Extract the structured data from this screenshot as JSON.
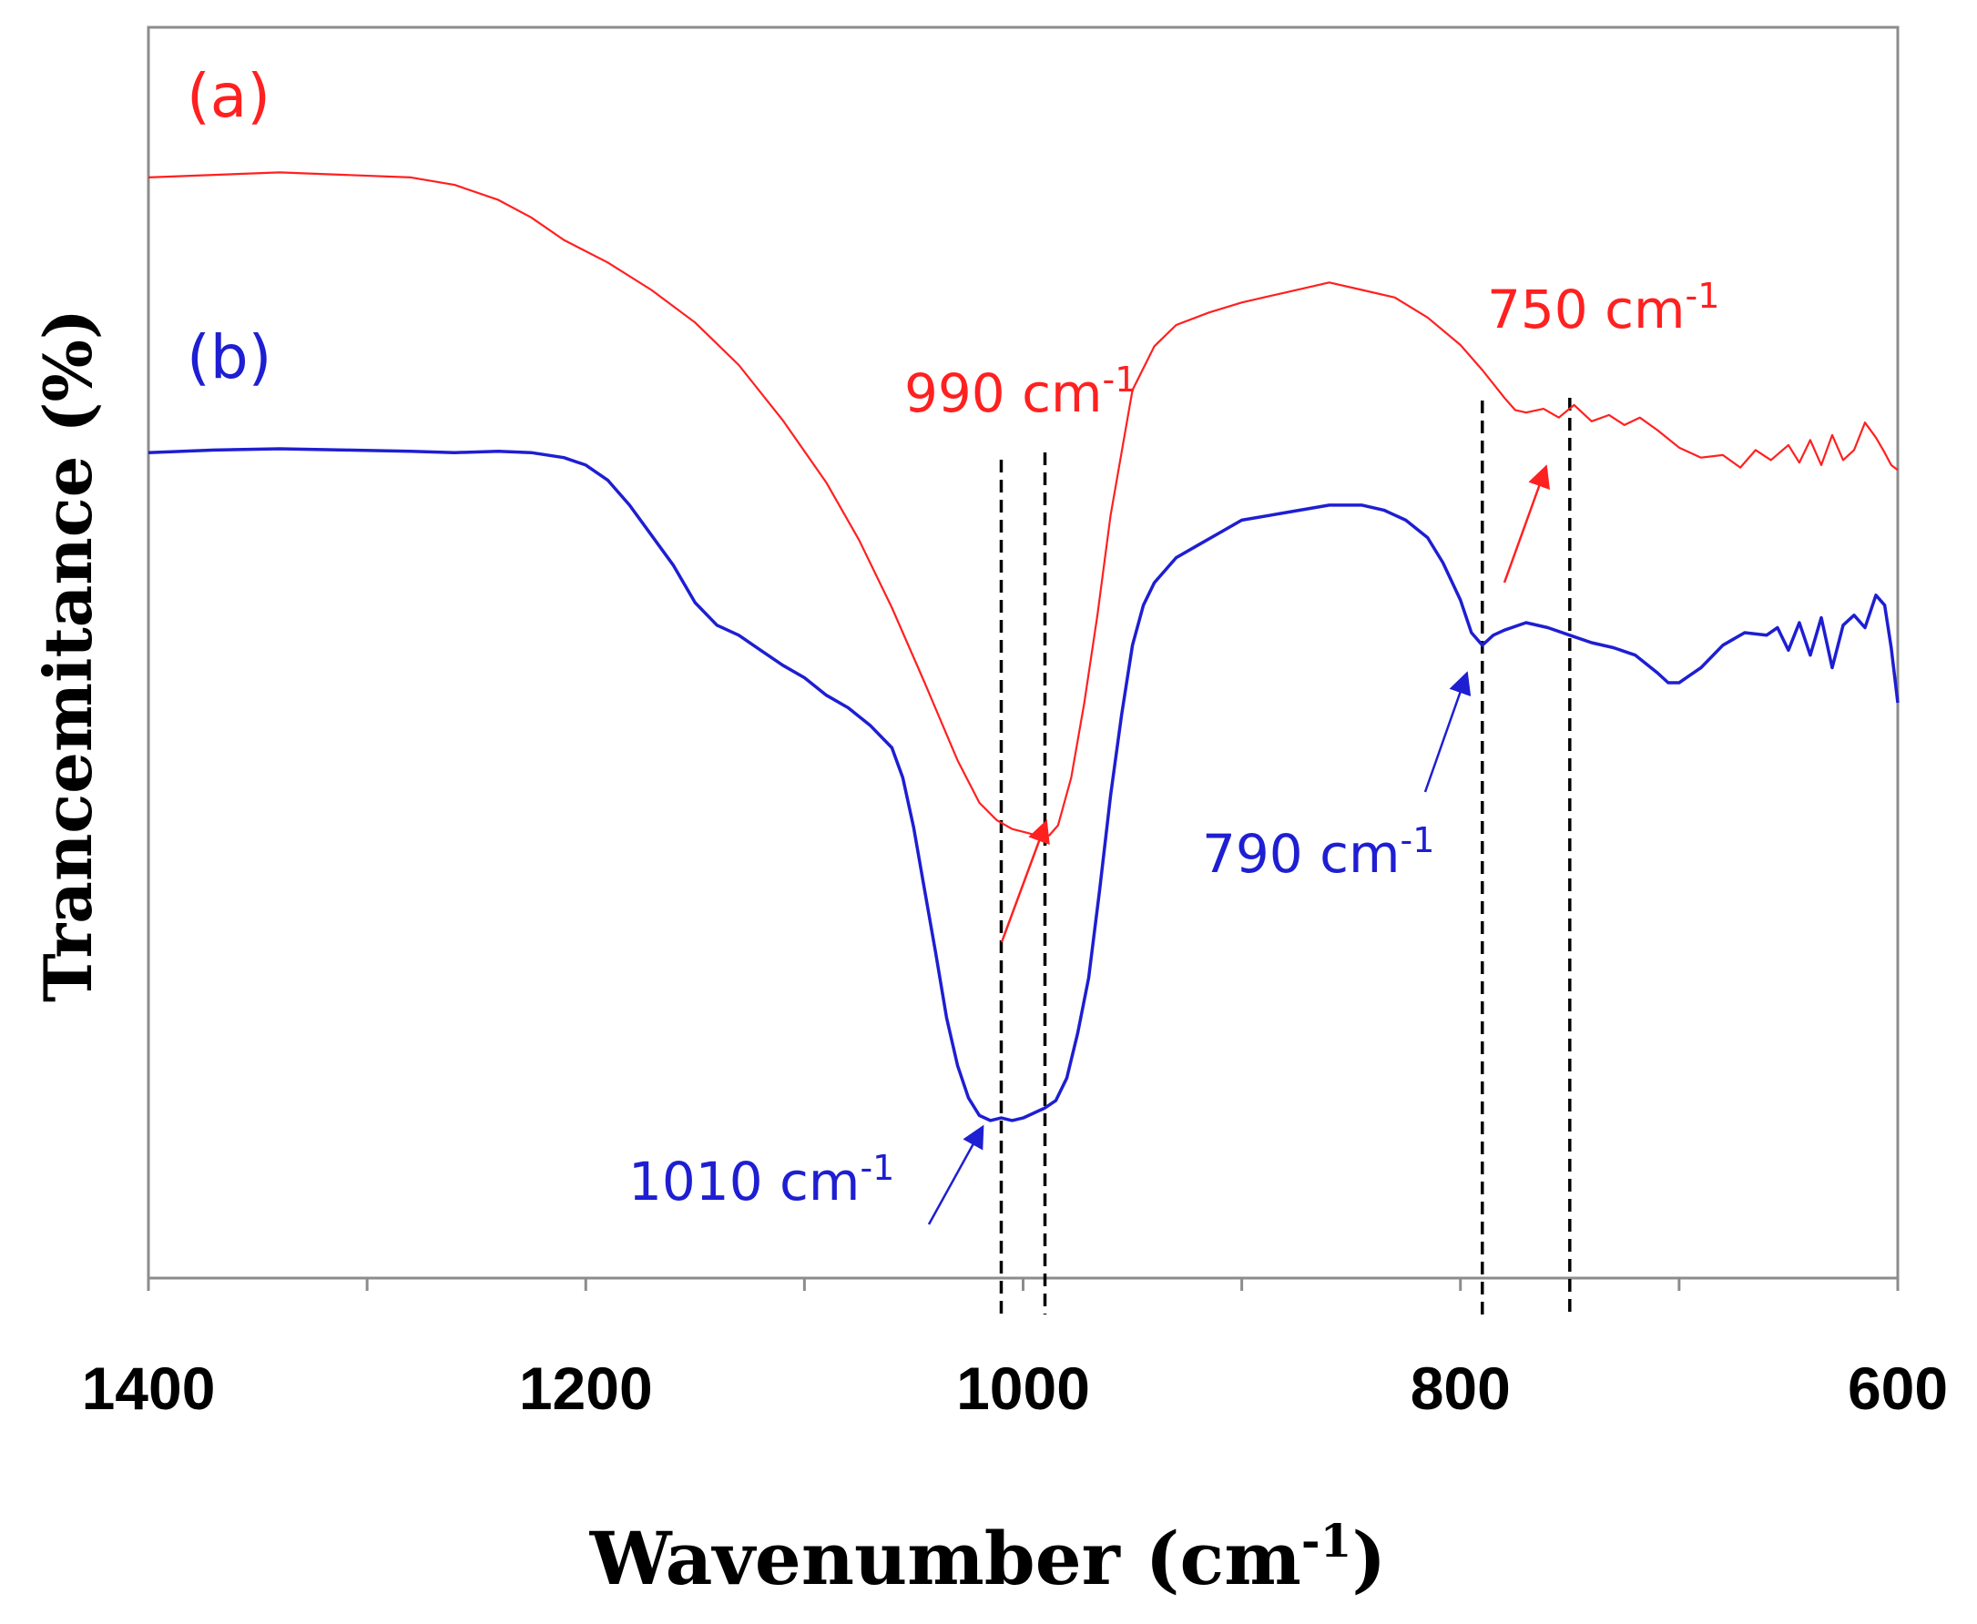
{
  "chart_data": {
    "type": "line",
    "title": "",
    "xlabel": "Wavenumber (cm",
    "xlabel_sup": "-1",
    "xlabel_close": ")",
    "ylabel": "Trancemitance (%)",
    "xlim": [
      1400,
      600
    ],
    "ylim": [
      0,
      100
    ],
    "x_ticks": [
      1400,
      1200,
      1000,
      800,
      600
    ],
    "x_minor_ticks": [
      1300,
      1100,
      900,
      700
    ],
    "grid": false,
    "y_tick_labels": false,
    "series": [
      {
        "name": "(a)",
        "color": "#ff2020",
        "x": [
          1400,
          1370,
          1340,
          1310,
          1280,
          1260,
          1240,
          1225,
          1210,
          1190,
          1170,
          1150,
          1130,
          1110,
          1090,
          1075,
          1060,
          1045,
          1030,
          1020,
          1012,
          1005,
          998,
          992,
          988,
          984,
          978,
          972,
          966,
          960,
          955,
          950,
          940,
          930,
          915,
          900,
          880,
          860,
          845,
          830,
          815,
          800,
          790,
          780,
          775,
          770,
          762,
          755,
          748,
          740,
          732,
          725,
          718,
          710,
          700,
          690,
          680,
          672,
          665,
          658,
          650,
          645,
          640,
          635,
          630,
          625,
          620,
          615,
          610,
          606,
          603,
          600
        ],
        "values": [
          88.0,
          88.2,
          88.4,
          88.2,
          88.0,
          87.4,
          86.2,
          84.8,
          83.0,
          81.2,
          79.0,
          76.4,
          73.0,
          68.6,
          63.6,
          59.0,
          53.6,
          47.6,
          41.4,
          38.0,
          36.6,
          35.9,
          35.6,
          35.3,
          35.4,
          36.2,
          40.0,
          46.0,
          53.0,
          61.0,
          66.0,
          71.0,
          74.5,
          76.2,
          77.2,
          78.0,
          78.8,
          79.6,
          79.0,
          78.4,
          76.8,
          74.6,
          72.6,
          70.4,
          69.4,
          69.2,
          69.5,
          68.8,
          69.8,
          68.5,
          69.0,
          68.2,
          68.8,
          67.8,
          66.4,
          65.6,
          65.8,
          64.8,
          66.2,
          65.4,
          66.6,
          65.2,
          67.0,
          65.0,
          67.4,
          65.4,
          66.2,
          68.4,
          67.2,
          66.0,
          65.0,
          64.6
        ]
      },
      {
        "name": "(b)",
        "color": "#1e1ed2",
        "x": [
          1400,
          1370,
          1340,
          1310,
          1280,
          1260,
          1240,
          1225,
          1210,
          1200,
          1190,
          1180,
          1170,
          1160,
          1150,
          1140,
          1130,
          1120,
          1110,
          1100,
          1090,
          1080,
          1070,
          1060,
          1055,
          1050,
          1045,
          1040,
          1035,
          1030,
          1025,
          1020,
          1015,
          1010,
          1005,
          1000,
          995,
          990,
          985,
          980,
          975,
          970,
          965,
          960,
          955,
          950,
          945,
          940,
          930,
          920,
          910,
          900,
          880,
          860,
          845,
          835,
          825,
          815,
          808,
          800,
          795,
          790,
          785,
          780,
          770,
          760,
          750,
          740,
          730,
          720,
          710,
          705,
          700,
          695,
          690,
          680,
          670,
          660,
          655,
          650,
          645,
          640,
          635,
          630,
          625,
          620,
          615,
          610,
          606,
          603,
          600
        ],
        "values": [
          66.0,
          66.2,
          66.3,
          66.2,
          66.1,
          66.0,
          66.1,
          66.0,
          65.6,
          65.0,
          63.8,
          61.8,
          59.4,
          57.0,
          54.0,
          52.2,
          51.4,
          50.2,
          49.0,
          48.0,
          46.6,
          45.6,
          44.2,
          42.4,
          40.0,
          36.0,
          31.0,
          26.0,
          20.8,
          17.0,
          14.4,
          13.0,
          12.6,
          12.8,
          12.6,
          12.8,
          13.2,
          13.6,
          14.2,
          16.0,
          19.6,
          24.0,
          31.0,
          38.6,
          45.0,
          50.6,
          53.8,
          55.6,
          57.6,
          58.6,
          59.6,
          60.6,
          61.2,
          61.8,
          61.8,
          61.4,
          60.6,
          59.2,
          57.2,
          54.2,
          51.6,
          50.6,
          51.4,
          51.8,
          52.4,
          52.0,
          51.4,
          50.8,
          50.4,
          49.8,
          48.4,
          47.6,
          47.6,
          48.2,
          48.8,
          50.6,
          51.6,
          51.4,
          52.0,
          50.2,
          52.4,
          49.8,
          52.8,
          48.8,
          52.2,
          53.0,
          52.0,
          54.6,
          53.8,
          50.4,
          46.0
        ]
      }
    ],
    "annotations": [
      {
        "id": "a",
        "text": "(a)",
        "color": "#ff2020"
      },
      {
        "id": "b",
        "text": "(b)",
        "color": "#1e1ed2"
      },
      {
        "id": "990",
        "text": "990 cm",
        "sup": "-1",
        "color": "#ff2020"
      },
      {
        "id": "750",
        "text": "750 cm",
        "sup": "-1",
        "color": "#ff2020"
      },
      {
        "id": "790",
        "text": "790 cm",
        "sup": "-1",
        "color": "#1e1ed2"
      },
      {
        "id": "1010",
        "text": "1010 cm",
        "sup": "-1",
        "color": "#1e1ed2"
      }
    ],
    "reference_lines_x": [
      1010,
      990,
      790,
      750
    ]
  }
}
